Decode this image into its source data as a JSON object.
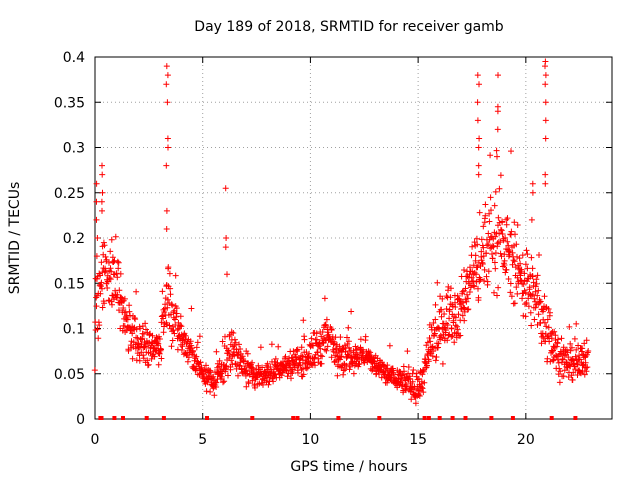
{
  "chart_data": {
    "type": "scatter",
    "title": "Day 189 of 2018, SRMTID for receiver gamb",
    "xlabel": "GPS time / hours",
    "ylabel": "SRMTID / TECUs",
    "xlim": [
      0,
      24
    ],
    "ylim": [
      0,
      0.4
    ],
    "xticks": [
      0,
      5,
      10,
      15,
      20
    ],
    "xtick_labels": [
      "0",
      "5",
      "10",
      "15",
      "20"
    ],
    "yticks": [
      0,
      0.05,
      0.1,
      0.15,
      0.2,
      0.25,
      0.3,
      0.35,
      0.4
    ],
    "ytick_labels": [
      "0",
      "0.05",
      "0.1",
      "0.15",
      "0.2",
      "0.25",
      "0.3",
      "0.35",
      "0.4"
    ],
    "grid": true,
    "marker": "plus",
    "color": "#ff0000",
    "series": [
      {
        "name": "SRMTID",
        "envelope": [
          {
            "x": 0.0,
            "y": 0.13,
            "spread": 0.07
          },
          {
            "x": 0.5,
            "y": 0.16,
            "spread": 0.06
          },
          {
            "x": 1.0,
            "y": 0.15,
            "spread": 0.06
          },
          {
            "x": 1.5,
            "y": 0.1,
            "spread": 0.04
          },
          {
            "x": 2.0,
            "y": 0.09,
            "spread": 0.04
          },
          {
            "x": 2.5,
            "y": 0.08,
            "spread": 0.03
          },
          {
            "x": 3.0,
            "y": 0.08,
            "spread": 0.03
          },
          {
            "x": 3.4,
            "y": 0.14,
            "spread": 0.06
          },
          {
            "x": 3.8,
            "y": 0.1,
            "spread": 0.04
          },
          {
            "x": 4.5,
            "y": 0.07,
            "spread": 0.03
          },
          {
            "x": 5.0,
            "y": 0.05,
            "spread": 0.02
          },
          {
            "x": 5.5,
            "y": 0.04,
            "spread": 0.02
          },
          {
            "x": 6.0,
            "y": 0.06,
            "spread": 0.03
          },
          {
            "x": 6.5,
            "y": 0.08,
            "spread": 0.04
          },
          {
            "x": 7.0,
            "y": 0.05,
            "spread": 0.02
          },
          {
            "x": 8.0,
            "y": 0.05,
            "spread": 0.02
          },
          {
            "x": 9.0,
            "y": 0.06,
            "spread": 0.02
          },
          {
            "x": 10.0,
            "y": 0.07,
            "spread": 0.03
          },
          {
            "x": 10.8,
            "y": 0.09,
            "spread": 0.04
          },
          {
            "x": 11.5,
            "y": 0.07,
            "spread": 0.03
          },
          {
            "x": 12.5,
            "y": 0.07,
            "spread": 0.02
          },
          {
            "x": 13.5,
            "y": 0.05,
            "spread": 0.02
          },
          {
            "x": 14.5,
            "y": 0.04,
            "spread": 0.02
          },
          {
            "x": 15.0,
            "y": 0.03,
            "spread": 0.02
          },
          {
            "x": 15.5,
            "y": 0.07,
            "spread": 0.04
          },
          {
            "x": 16.0,
            "y": 0.1,
            "spread": 0.05
          },
          {
            "x": 16.5,
            "y": 0.12,
            "spread": 0.05
          },
          {
            "x": 17.0,
            "y": 0.12,
            "spread": 0.05
          },
          {
            "x": 17.5,
            "y": 0.16,
            "spread": 0.06
          },
          {
            "x": 18.0,
            "y": 0.18,
            "spread": 0.07
          },
          {
            "x": 18.5,
            "y": 0.2,
            "spread": 0.07
          },
          {
            "x": 19.0,
            "y": 0.19,
            "spread": 0.07
          },
          {
            "x": 19.5,
            "y": 0.17,
            "spread": 0.06
          },
          {
            "x": 20.0,
            "y": 0.15,
            "spread": 0.06
          },
          {
            "x": 20.5,
            "y": 0.13,
            "spread": 0.06
          },
          {
            "x": 21.0,
            "y": 0.1,
            "spread": 0.05
          },
          {
            "x": 21.5,
            "y": 0.07,
            "spread": 0.03
          },
          {
            "x": 22.0,
            "y": 0.06,
            "spread": 0.03
          },
          {
            "x": 22.5,
            "y": 0.06,
            "spread": 0.03
          },
          {
            "x": 22.9,
            "y": 0.07,
            "spread": 0.03
          }
        ],
        "peaks": [
          {
            "x": 0.1,
            "values": [
              0.26,
              0.24,
              0.22,
              0.2,
              0.18
            ]
          },
          {
            "x": 0.35,
            "values": [
              0.28,
              0.27,
              0.25,
              0.24,
              0.23
            ]
          },
          {
            "x": 3.35,
            "values": [
              0.39,
              0.38,
              0.37,
              0.35,
              0.31,
              0.3,
              0.28,
              0.23,
              0.21
            ]
          },
          {
            "x": 6.1,
            "values": [
              0.255,
              0.2,
              0.19,
              0.16
            ]
          },
          {
            "x": 17.8,
            "values": [
              0.38,
              0.37,
              0.35,
              0.33,
              0.31,
              0.3,
              0.28,
              0.27
            ]
          },
          {
            "x": 18.7,
            "values": [
              0.38,
              0.345,
              0.34,
              0.32,
              0.29
            ]
          },
          {
            "x": 20.9,
            "values": [
              0.395,
              0.39,
              0.38,
              0.37,
              0.35,
              0.33,
              0.31,
              0.27,
              0.26
            ]
          },
          {
            "x": 20.3,
            "values": [
              0.26,
              0.25,
              0.22
            ]
          }
        ],
        "zero_markers_x": [
          0.25,
          0.3,
          0.9,
          1.3,
          2.4,
          3.2,
          5.2,
          7.3,
          9.2,
          9.4,
          11.3,
          13.2,
          15.3,
          15.5,
          16.0,
          16.6,
          17.2,
          18.4,
          19.4,
          21.2,
          22.3
        ]
      }
    ]
  }
}
